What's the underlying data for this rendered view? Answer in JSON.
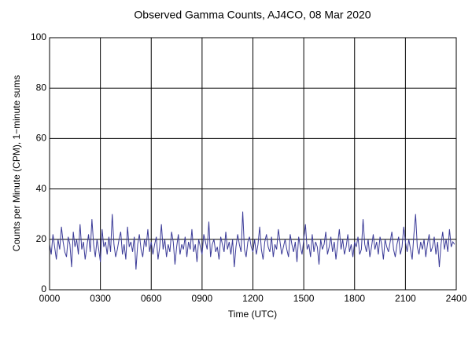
{
  "chart_data": {
    "type": "line",
    "title": "Observed Gamma Counts, AJ4CO, 08 Mar 2020",
    "x_label": "Time (UTC)",
    "y_label": "Counts per Minute (CPM), 1−minute sums",
    "xlim": [
      0,
      1440
    ],
    "xticks": [
      {
        "value": 0,
        "label": "0000"
      },
      {
        "value": 180,
        "label": "0300"
      },
      {
        "value": 360,
        "label": "0600"
      },
      {
        "value": 540,
        "label": "0900"
      },
      {
        "value": 720,
        "label": "1200"
      },
      {
        "value": 900,
        "label": "1500"
      },
      {
        "value": 1080,
        "label": "1800"
      },
      {
        "value": 1260,
        "label": "2100"
      },
      {
        "value": 1440,
        "label": "2400"
      }
    ],
    "ylim": [
      0,
      100
    ],
    "yticks": [
      0,
      20,
      40,
      60,
      80,
      100
    ],
    "grid": true,
    "x": [
      0,
      6,
      12,
      18,
      24,
      30,
      36,
      42,
      48,
      54,
      60,
      66,
      72,
      78,
      84,
      90,
      96,
      102,
      108,
      114,
      120,
      126,
      132,
      138,
      144,
      150,
      156,
      162,
      168,
      174,
      180,
      186,
      192,
      198,
      204,
      210,
      216,
      222,
      228,
      234,
      240,
      246,
      252,
      258,
      264,
      270,
      276,
      282,
      288,
      294,
      300,
      306,
      312,
      318,
      324,
      330,
      336,
      342,
      348,
      354,
      360,
      366,
      372,
      378,
      384,
      390,
      396,
      402,
      408,
      414,
      420,
      426,
      432,
      438,
      444,
      450,
      456,
      462,
      468,
      474,
      480,
      486,
      492,
      498,
      504,
      510,
      516,
      522,
      528,
      534,
      540,
      546,
      552,
      558,
      564,
      570,
      576,
      582,
      588,
      594,
      600,
      606,
      612,
      618,
      624,
      630,
      636,
      642,
      648,
      654,
      660,
      666,
      672,
      678,
      684,
      690,
      696,
      702,
      708,
      714,
      720,
      726,
      732,
      738,
      744,
      750,
      756,
      762,
      768,
      774,
      780,
      786,
      792,
      798,
      804,
      810,
      816,
      822,
      828,
      834,
      840,
      846,
      852,
      858,
      864,
      870,
      876,
      882,
      888,
      894,
      900,
      906,
      912,
      918,
      924,
      930,
      936,
      942,
      948,
      954,
      960,
      966,
      972,
      978,
      984,
      990,
      996,
      1002,
      1008,
      1014,
      1020,
      1026,
      1032,
      1038,
      1044,
      1050,
      1056,
      1062,
      1068,
      1074,
      1080,
      1086,
      1092,
      1098,
      1104,
      1110,
      1116,
      1122,
      1128,
      1134,
      1140,
      1146,
      1152,
      1158,
      1164,
      1170,
      1176,
      1182,
      1188,
      1194,
      1200,
      1206,
      1212,
      1218,
      1224,
      1230,
      1236,
      1242,
      1248,
      1254,
      1260,
      1266,
      1272,
      1278,
      1284,
      1290,
      1296,
      1302,
      1308,
      1314,
      1320,
      1326,
      1332,
      1338,
      1344,
      1350,
      1356,
      1362,
      1368,
      1374,
      1380,
      1386,
      1392,
      1398,
      1404,
      1410,
      1416,
      1422,
      1428,
      1434
    ],
    "series": [
      {
        "name": "CPM",
        "color": "#3b3b98",
        "values": [
          18,
          14,
          22,
          17,
          12,
          20,
          16,
          25,
          19,
          15,
          13,
          21,
          18,
          9,
          23,
          17,
          20,
          14,
          26,
          16,
          19,
          12,
          17,
          22,
          15,
          28,
          18,
          13,
          20,
          16,
          11,
          24,
          17,
          19,
          14,
          21,
          15,
          30,
          18,
          13,
          16,
          20,
          23,
          14,
          18,
          12,
          25,
          17,
          19,
          15,
          21,
          8,
          18,
          22,
          16,
          13,
          20,
          17,
          24,
          15,
          19,
          14,
          18,
          21,
          12,
          17,
          26,
          16,
          20,
          13,
          18,
          15,
          23,
          19,
          10,
          17,
          22,
          14,
          18,
          16,
          21,
          13,
          19,
          16,
          24,
          15,
          18,
          11,
          20,
          17,
          14,
          22,
          19,
          16,
          27,
          13,
          18,
          20,
          15,
          17,
          12,
          21,
          18,
          15,
          23,
          16,
          19,
          14,
          20,
          9,
          17,
          22,
          18,
          15,
          31,
          16,
          13,
          19,
          21,
          17,
          15,
          20,
          14,
          18,
          25,
          16,
          12,
          19,
          22,
          17,
          15,
          21,
          13,
          18,
          16,
          24,
          19,
          14,
          17,
          20,
          16,
          13,
          22,
          18,
          15,
          19,
          11,
          21,
          17,
          14,
          20,
          26,
          16,
          18,
          13,
          22,
          15,
          19,
          17,
          10,
          20,
          16,
          18,
          23,
          14,
          17,
          21,
          15,
          19,
          12,
          18,
          24,
          16,
          20,
          14,
          17,
          22,
          15,
          18,
          13,
          19,
          17,
          21,
          14,
          16,
          28,
          18,
          15,
          20,
          13,
          17,
          22,
          16,
          19,
          14,
          21,
          18,
          12,
          20,
          17,
          15,
          19,
          23,
          16,
          13,
          18,
          21,
          14,
          17,
          25,
          19,
          15,
          20,
          16,
          12,
          22,
          30,
          17,
          14,
          19,
          16,
          20,
          13,
          18,
          22,
          15,
          17,
          21,
          14,
          19,
          9,
          18,
          23,
          16,
          20,
          15,
          24,
          17,
          19,
          18
        ]
      }
    ]
  }
}
